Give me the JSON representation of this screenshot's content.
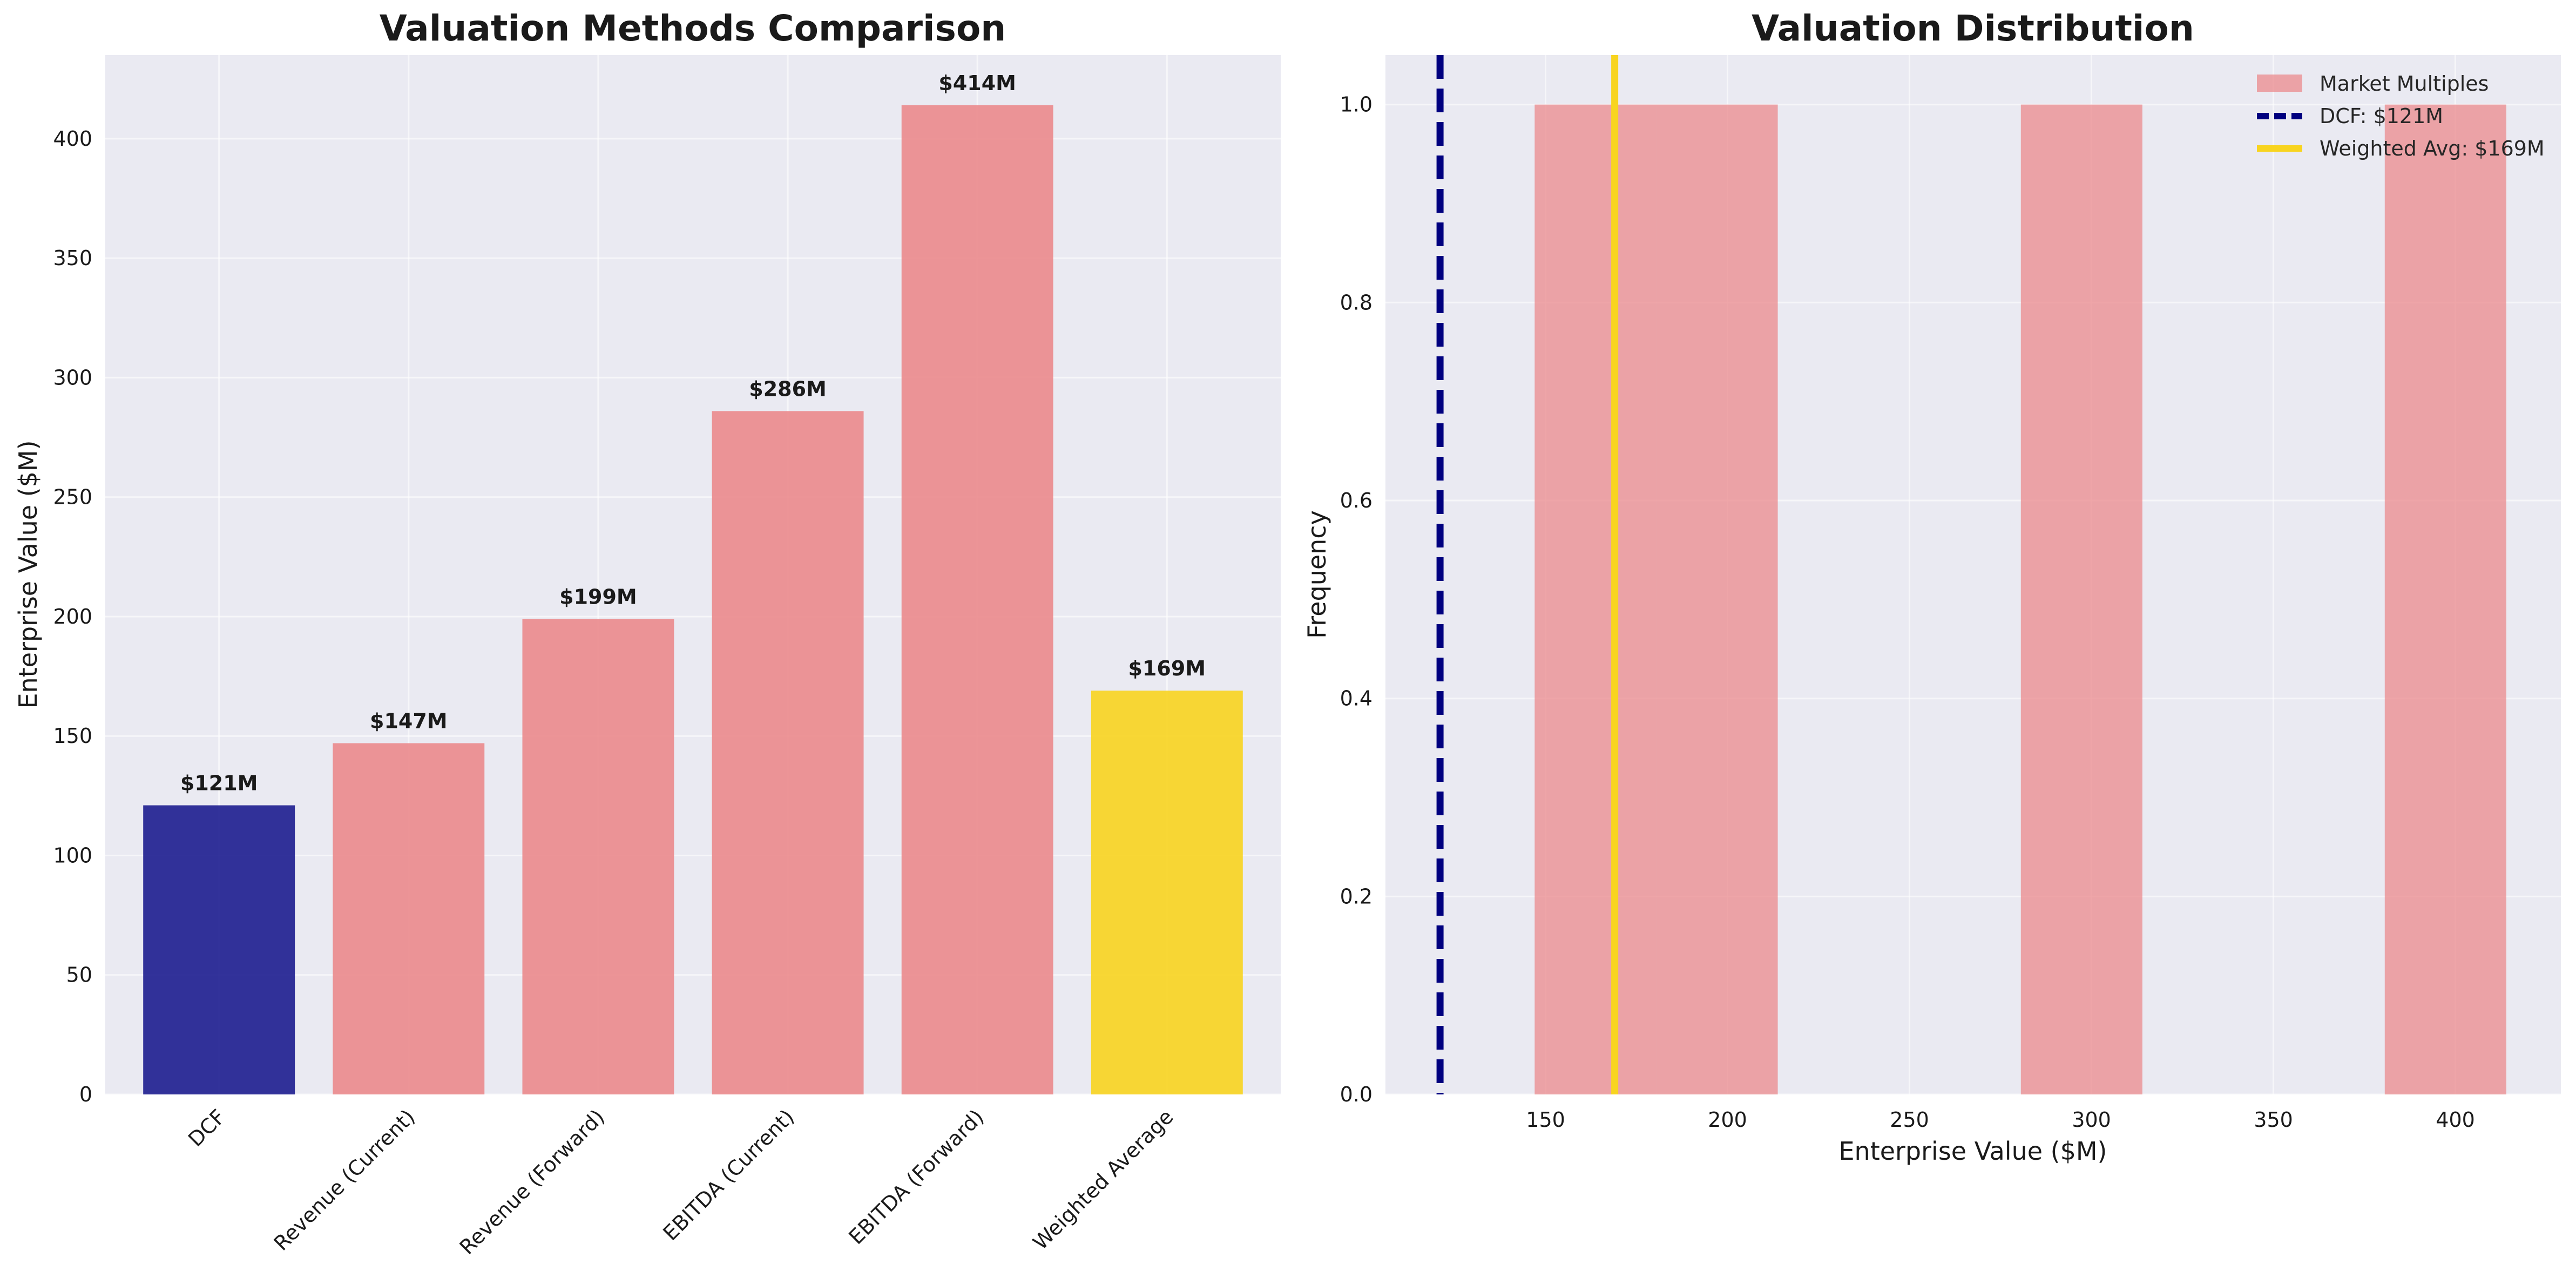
{
  "colors": {
    "background": "#ffffff",
    "axes_face": "#eaeaf2",
    "grid": "#ffffff",
    "dcf": "#00007f",
    "market": "#eb8a8c",
    "weighted": "#f8d41f",
    "text": "#1a1a1a"
  },
  "chart_data": [
    {
      "type": "bar",
      "title": "Valuation Methods Comparison",
      "xlabel": "",
      "ylabel": "Enterprise Value ($M)",
      "ylim": [
        0,
        435
      ],
      "yticks": [
        0,
        50,
        100,
        150,
        200,
        250,
        300,
        350,
        400
      ],
      "grid": true,
      "categories": [
        "DCF",
        "Revenue (Current)",
        "Revenue (Forward)",
        "EBITDA (Current)",
        "EBITDA (Forward)",
        "Weighted Average"
      ],
      "values": [
        121,
        147,
        199,
        286,
        414,
        169
      ],
      "value_labels": [
        "$121M",
        "$147M",
        "$199M",
        "$286M",
        "$414M",
        "$169M"
      ],
      "bar_colors": [
        "#1d1d8f",
        "#eb8a8c",
        "#eb8a8c",
        "#eb8a8c",
        "#eb8a8c",
        "#f8d41f"
      ]
    },
    {
      "type": "histogram",
      "title": "Valuation Distribution",
      "xlabel": "Enterprise Value ($M)",
      "ylabel": "Frequency",
      "xlim": [
        106,
        429
      ],
      "ylim": [
        0,
        1.05
      ],
      "xticks": [
        150,
        200,
        250,
        300,
        350,
        400
      ],
      "yticks": [
        0.0,
        0.2,
        0.4,
        0.6,
        0.8,
        1.0
      ],
      "ytick_labels": [
        "0.0",
        "0.2",
        "0.4",
        "0.6",
        "0.8",
        "1.0"
      ],
      "grid": true,
      "series": [
        {
          "name": "Market Multiples",
          "bins": [
            [
              147,
              180.4
            ],
            [
              180.4,
              213.8
            ],
            [
              280.6,
              314
            ],
            [
              380.6,
              414
            ]
          ],
          "counts": [
            1,
            1,
            1,
            1
          ]
        }
      ],
      "vlines": [
        {
          "name": "DCF: $121M",
          "x": 121,
          "style": "dashed",
          "color": "#00007f"
        },
        {
          "name": "Weighted Avg: $169M",
          "x": 169,
          "style": "solid",
          "color": "#f8d41f"
        }
      ],
      "legend": {
        "placement": "top-right",
        "entries": [
          "Market Multiples",
          "DCF: $121M",
          "Weighted Avg: $169M"
        ]
      }
    }
  ]
}
